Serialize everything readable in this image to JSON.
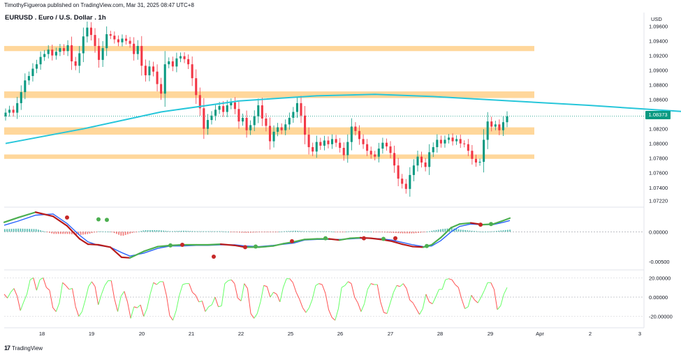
{
  "header": {
    "published": "TimothyFigueroa published on TradingView.com, Mar 31, 2025 08:47 UTC+8"
  },
  "title": "EURUSD . Euro / U.S. Dollar . 1h",
  "currency": "USD",
  "last_price": "1.08373",
  "footer": {
    "logo": "17",
    "brand": "TradingView"
  },
  "colors": {
    "up": "#089981",
    "down": "#f23645",
    "ma": "#26c6da",
    "zone": "#ffd08a",
    "macd": "#2962ff",
    "signal_up": "#4caf50",
    "signal_down": "#b71c1c",
    "osc_up": "#66ff66",
    "osc_down": "#ff5252",
    "dot_green": "#4caf50",
    "dot_red": "#c62828"
  },
  "chart_data": {
    "type": "candlestick",
    "symbol": "EURUSD",
    "interval": "1h",
    "x_labels": [
      "18",
      "19",
      "20",
      "21",
      "22",
      "25",
      "26",
      "27",
      "28",
      "29",
      "Apr",
      "2",
      "3"
    ],
    "main": {
      "y_ticks": [
        "1.09600",
        "1.09400",
        "1.09200",
        "1.09000",
        "1.08800",
        "1.08600",
        "1.08400",
        "1.08200",
        "1.08000",
        "1.07800",
        "1.07600",
        "1.07400",
        "1.07220"
      ],
      "ylim": [
        1.0716,
        1.097
      ],
      "zones": [
        [
          1.0926,
          1.0933
        ],
        [
          1.0862,
          1.0871
        ],
        [
          1.0812,
          1.0822
        ],
        [
          1.0779,
          1.0785
        ]
      ],
      "ma_series": [
        [
          0,
          1.08
        ],
        [
          20,
          1.082
        ],
        [
          40,
          1.0843
        ],
        [
          60,
          1.0858
        ],
        [
          80,
          1.0865
        ],
        [
          95,
          1.0867
        ],
        [
          110,
          1.0864
        ],
        [
          130,
          1.0858
        ],
        [
          150,
          1.0852
        ],
        [
          170,
          1.0845
        ],
        [
          185,
          1.084
        ],
        [
          200,
          1.0835
        ],
        [
          215,
          1.0828
        ],
        [
          228,
          1.082
        ],
        [
          238,
          1.0815
        ],
        [
          245,
          1.0813
        ],
        [
          250,
          1.0813
        ]
      ],
      "candles_close": [
        1.0842,
        1.0846,
        1.0842,
        1.0855,
        1.087,
        1.0886,
        1.0892,
        1.0902,
        1.0908,
        1.0918,
        1.0922,
        1.0928,
        1.092,
        1.0925,
        1.093,
        1.0926,
        1.0934,
        1.0912,
        1.0906,
        1.0923,
        1.0946,
        1.0958,
        1.0948,
        1.0933,
        1.0914,
        1.093,
        1.0949,
        1.0947,
        1.0942,
        1.0938,
        1.0943,
        1.094,
        1.0936,
        1.0922,
        1.0933,
        1.0906,
        1.0893,
        1.0905,
        1.0898,
        1.0881,
        1.0868,
        1.0908,
        1.0912,
        1.0905,
        1.0916,
        1.0919,
        1.0915,
        1.0908,
        1.0889,
        1.0866,
        1.0848,
        1.082,
        1.0832,
        1.0838,
        1.0846,
        1.0851,
        1.0843,
        1.0852,
        1.0856,
        1.0847,
        1.083,
        1.0835,
        1.0818,
        1.0825,
        1.0837,
        1.0852,
        1.0834,
        1.0824,
        1.0803,
        1.0816,
        1.0822,
        1.0818,
        1.0826,
        1.0835,
        1.0843,
        1.0855,
        1.0838,
        1.0812,
        1.0795,
        1.0789,
        1.0802,
        1.0797,
        1.0804,
        1.0799,
        1.0806,
        1.0801,
        1.0794,
        1.0784,
        1.0802,
        1.0823,
        1.0817,
        1.0806,
        1.0799,
        1.079,
        1.0785,
        1.0782,
        1.0793,
        1.0801,
        1.0796,
        1.0787,
        1.077,
        1.0752,
        1.0745,
        1.0738,
        1.0757,
        1.077,
        1.0782,
        1.0774,
        1.0768,
        1.0788,
        1.0795,
        1.0805,
        1.08,
        1.0805,
        1.0808,
        1.0803,
        1.0806,
        1.08,
        1.0799,
        1.079,
        1.0779,
        1.0774,
        1.0775,
        1.0805,
        1.083,
        1.0823,
        1.0826,
        1.0818,
        1.0829,
        1.0837
      ],
      "last": 1.08373
    },
    "macd": {
      "y_ticks": [
        "0.00000",
        "-0.00500"
      ],
      "ylim": [
        -0.0062,
        0.0038
      ],
      "fast": [
        [
          0,
          0.0016
        ],
        [
          20,
          0.0024
        ],
        [
          45,
          0.0033
        ],
        [
          70,
          0.0026
        ],
        [
          90,
          0.001
        ],
        [
          108,
          -0.0012
        ],
        [
          120,
          -0.0021
        ],
        [
          135,
          -0.0022
        ],
        [
          152,
          -0.0026
        ],
        [
          168,
          -0.0043
        ],
        [
          180,
          -0.0044
        ],
        [
          200,
          -0.0033
        ],
        [
          220,
          -0.0025
        ],
        [
          238,
          -0.0023
        ],
        [
          255,
          -0.0022
        ],
        [
          275,
          -0.0022
        ],
        [
          292,
          -0.0022
        ],
        [
          310,
          -0.0021
        ],
        [
          330,
          -0.0023
        ],
        [
          345,
          -0.0026
        ],
        [
          365,
          -0.0026
        ],
        [
          385,
          -0.0024
        ],
        [
          400,
          -0.002
        ],
        [
          415,
          -0.0017
        ],
        [
          430,
          -0.0013
        ],
        [
          448,
          -0.0012
        ],
        [
          465,
          -0.0012
        ],
        [
          480,
          -0.0014
        ],
        [
          495,
          -0.0011
        ],
        [
          510,
          -0.001
        ],
        [
          525,
          -0.0011
        ],
        [
          540,
          -0.0013
        ],
        [
          555,
          -0.0016
        ],
        [
          570,
          -0.0021
        ],
        [
          585,
          -0.0025
        ],
        [
          600,
          -0.0026
        ],
        [
          612,
          -0.0022
        ],
        [
          625,
          -0.001
        ],
        [
          640,
          0.0007
        ],
        [
          652,
          0.0013
        ],
        [
          668,
          0.0015
        ],
        [
          685,
          0.0012
        ],
        [
          700,
          0.0013
        ],
        [
          715,
          0.0019
        ],
        [
          724,
          0.0023
        ]
      ],
      "slow": [
        [
          0,
          0.0011
        ],
        [
          20,
          0.0018
        ],
        [
          45,
          0.0028
        ],
        [
          70,
          0.003
        ],
        [
          90,
          0.0014
        ],
        [
          108,
          -0.0006
        ],
        [
          120,
          -0.0017
        ],
        [
          135,
          -0.0023
        ],
        [
          152,
          -0.0026
        ],
        [
          168,
          -0.0035
        ],
        [
          180,
          -0.0041
        ],
        [
          200,
          -0.0036
        ],
        [
          220,
          -0.0028
        ],
        [
          238,
          -0.0024
        ],
        [
          255,
          -0.0024
        ],
        [
          275,
          -0.0023
        ],
        [
          292,
          -0.0023
        ],
        [
          310,
          -0.0022
        ],
        [
          330,
          -0.0022
        ],
        [
          345,
          -0.0024
        ],
        [
          365,
          -0.0025
        ],
        [
          385,
          -0.0023
        ],
        [
          400,
          -0.0021
        ],
        [
          415,
          -0.0019
        ],
        [
          430,
          -0.0014
        ],
        [
          448,
          -0.0013
        ],
        [
          465,
          -0.0013
        ],
        [
          480,
          -0.0013
        ],
        [
          495,
          -0.0012
        ],
        [
          510,
          -0.0011
        ],
        [
          525,
          -0.0011
        ],
        [
          540,
          -0.0012
        ],
        [
          555,
          -0.0014
        ],
        [
          570,
          -0.0018
        ],
        [
          585,
          -0.0022
        ],
        [
          600,
          -0.0025
        ],
        [
          612,
          -0.0024
        ],
        [
          625,
          -0.0015
        ],
        [
          640,
          0.0
        ],
        [
          652,
          0.0009
        ],
        [
          668,
          0.0013
        ],
        [
          685,
          0.0012
        ],
        [
          700,
          0.0012
        ],
        [
          715,
          0.0016
        ],
        [
          724,
          0.0019
        ]
      ],
      "dots": [
        [
          90,
          0.0024,
          "red"
        ],
        [
          135,
          0.0021,
          "green"
        ],
        [
          147,
          0.002,
          "green"
        ],
        [
          238,
          -0.0023,
          "green"
        ],
        [
          255,
          -0.0022,
          "red"
        ],
        [
          300,
          -0.0042,
          "red"
        ],
        [
          345,
          -0.0026,
          "red"
        ],
        [
          360,
          -0.0025,
          "green"
        ],
        [
          412,
          -0.0016,
          "red"
        ],
        [
          460,
          -0.0011,
          "green"
        ],
        [
          515,
          -0.0011,
          "red"
        ],
        [
          543,
          -0.0012,
          "green"
        ],
        [
          560,
          -0.0011,
          "red"
        ],
        [
          605,
          -0.0024,
          "green"
        ],
        [
          682,
          0.0012,
          "red"
        ],
        [
          697,
          0.0013,
          "green"
        ]
      ]
    },
    "oscillator": {
      "y_ticks": [
        "20.00000",
        "0.00000",
        "-20.00000"
      ],
      "ylim": [
        -26,
        26
      ],
      "series": [
        3,
        -1,
        5,
        9,
        1,
        -14,
        -5,
        3,
        18,
        20,
        7,
        18,
        20,
        10,
        7,
        -11,
        -15,
        -6,
        15,
        12,
        8,
        9,
        -10,
        -20,
        -15,
        -3,
        11,
        16,
        11,
        -8,
        3,
        12,
        17,
        17,
        -2,
        -15,
        1,
        6,
        -5,
        -22,
        -10,
        -11,
        -8,
        -20,
        -12,
        3,
        15,
        13,
        16,
        16,
        2,
        -19,
        -24,
        -14,
        2,
        13,
        14,
        14,
        5,
        2,
        -5,
        -4,
        -15,
        -10,
        -8,
        0,
        -10,
        -9,
        14,
        17,
        18,
        14,
        -1,
        -4,
        14,
        9,
        -17,
        -22,
        -17,
        -5,
        12,
        11,
        0,
        5,
        3,
        -5,
        10,
        19,
        19,
        15,
        5,
        -2,
        -11,
        -16,
        -11,
        -2,
        12,
        14,
        13,
        4,
        -13,
        -21,
        -24,
        -12,
        10,
        12,
        16,
        14,
        0,
        -6,
        -15,
        -7,
        8,
        14,
        13,
        13,
        -5,
        -16,
        -17,
        -6,
        5,
        12,
        11,
        14,
        9,
        -3,
        -6,
        -12,
        -18,
        -12,
        3,
        -5,
        -7,
        0,
        8,
        8,
        18,
        19,
        18,
        13,
        10,
        -2,
        -12,
        -10,
        2,
        -3,
        -6,
        0,
        7,
        15,
        15,
        8,
        -13,
        -9,
        3,
        10
      ]
    }
  }
}
